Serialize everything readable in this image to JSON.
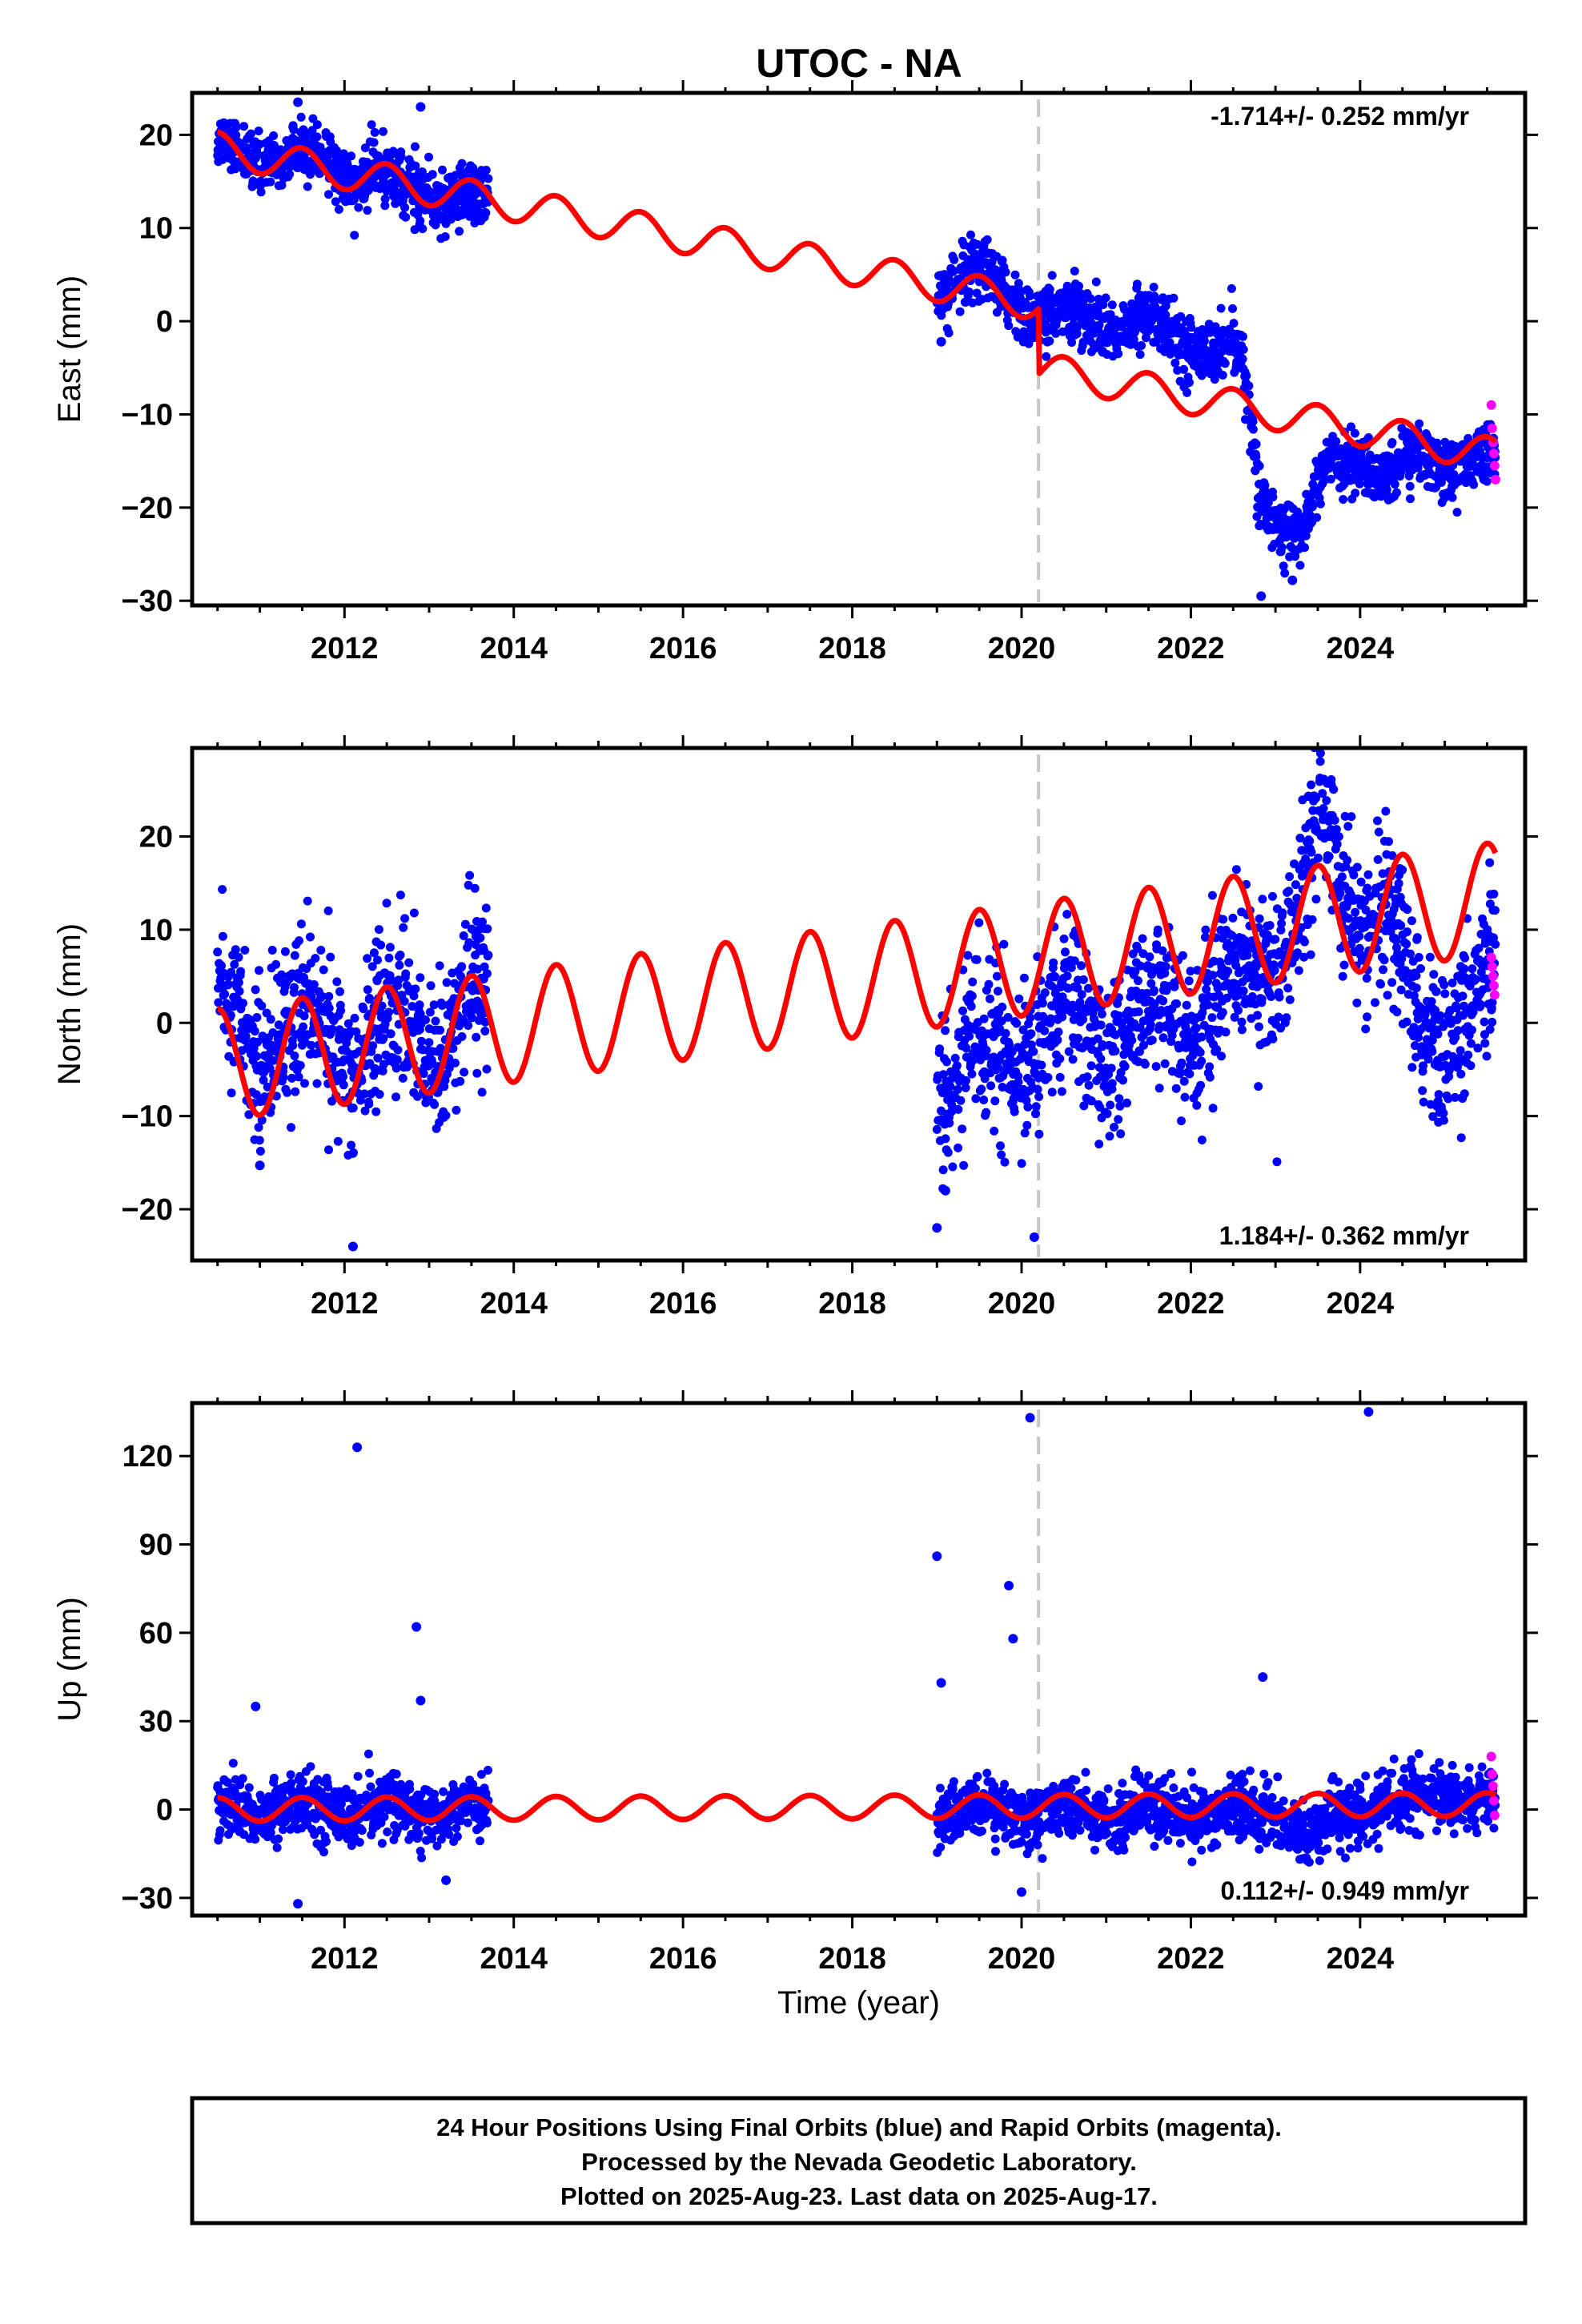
{
  "title": "UTOC - NA",
  "colors": {
    "final": "#0000ff",
    "rapid": "#ff00ff",
    "model": "#ff0000",
    "event": "#c8c8c8"
  },
  "footer": {
    "line1": "24 Hour Positions Using Final Orbits (blue) and Rapid Orbits (magenta).",
    "line2": "Processed by the Nevada Geodetic Laboratory.",
    "line3": "Plotted on 2025-Aug-23. Last data on 2025-Aug-17."
  },
  "chart_data": [
    {
      "type": "scatter",
      "component": "east",
      "ylabel": "East (mm)",
      "xlabel": "",
      "xlim": [
        2010.2,
        2025.95
      ],
      "ylim": [
        -30.5,
        24.5
      ],
      "xticks": [
        2012,
        2014,
        2016,
        2018,
        2020,
        2022,
        2024
      ],
      "yticks": [
        -30,
        -20,
        -10,
        0,
        10,
        20
      ],
      "rate_text": "-1.714+/- 0.252 mm/yr",
      "rate_position": "top-right",
      "event_x": 2020.2,
      "segments": [
        [
          2010.5,
          2013.7
        ],
        [
          2019.0,
          2025.6
        ]
      ],
      "model": {
        "base": 18.5,
        "ref": 2010.5,
        "rate": -1.714,
        "amp": 1.8,
        "step_at": 2020.2,
        "step": -7.0
      },
      "trend_anchors": [
        [
          2010.5,
          18.5
        ],
        [
          2011.5,
          17.5
        ],
        [
          2012.5,
          15.2
        ],
        [
          2013.7,
          12.0
        ],
        [
          2019.0,
          3.5
        ],
        [
          2019.6,
          4.5
        ],
        [
          2020.2,
          0.5
        ],
        [
          2020.5,
          0.5
        ],
        [
          2021.2,
          0.0
        ],
        [
          2021.8,
          -1.5
        ],
        [
          2022.3,
          -3.0
        ],
        [
          2022.6,
          -4.0
        ],
        [
          2022.8,
          -18.5
        ],
        [
          2023.3,
          -23.0
        ],
        [
          2023.6,
          -16.0
        ],
        [
          2024.0,
          -14.0
        ],
        [
          2024.3,
          -17.0
        ],
        [
          2024.7,
          -14.5
        ],
        [
          2025.6,
          -15.0
        ]
      ],
      "noise": 1.6,
      "outliers": [
        [
          2011.45,
          23.5
        ],
        [
          2012.9,
          23.0
        ],
        [
          2022.83,
          -29.5
        ],
        [
          2023.2,
          -27.8
        ],
        [
          2019.05,
          -2.2
        ]
      ],
      "rapid": [
        [
          2025.55,
          -9.0
        ],
        [
          2025.56,
          -11.5
        ],
        [
          2025.57,
          -13.0
        ],
        [
          2025.58,
          -14.2
        ],
        [
          2025.59,
          -15.5
        ],
        [
          2025.6,
          -17.0
        ]
      ]
    },
    {
      "type": "scatter",
      "component": "north",
      "ylabel": "North (mm)",
      "xlabel": "",
      "xlim": [
        2010.2,
        2025.95
      ],
      "ylim": [
        -25.5,
        29.5
      ],
      "xticks": [
        2012,
        2014,
        2016,
        2018,
        2020,
        2022,
        2024
      ],
      "yticks": [
        -20,
        -10,
        0,
        10,
        20
      ],
      "rate_text": "1.184+/- 0.362 mm/yr",
      "rate_position": "bottom-right",
      "event_x": 2020.2,
      "segments": [
        [
          2010.5,
          2013.7
        ],
        [
          2019.0,
          2025.6
        ]
      ],
      "model": {
        "base": -4.5,
        "ref": 2010.5,
        "rate": 1.184,
        "amp": 6.0,
        "step_at": 2020.2,
        "step": 0.0
      },
      "trend_anchors": [
        [
          2010.5,
          0.0
        ],
        [
          2011.5,
          -1.5
        ],
        [
          2012.5,
          -2.0
        ],
        [
          2013.7,
          1.5
        ],
        [
          2019.0,
          -6.0
        ],
        [
          2020.2,
          -2.0
        ],
        [
          2021.0,
          -1.0
        ],
        [
          2022.0,
          1.5
        ],
        [
          2022.7,
          4.0
        ],
        [
          2023.1,
          10.0
        ],
        [
          2023.5,
          19.0
        ],
        [
          2023.9,
          14.0
        ],
        [
          2024.3,
          11.0
        ],
        [
          2024.7,
          -2.0
        ],
        [
          2025.6,
          3.5
        ]
      ],
      "noise": 4.2,
      "outliers": [
        [
          2012.1,
          -24.0
        ],
        [
          2019.0,
          -22.0
        ],
        [
          2020.15,
          -23.0
        ],
        [
          2019.1,
          -18.0
        ],
        [
          2011.0,
          -15.3
        ]
      ],
      "rapid": [
        [
          2025.55,
          7.0
        ],
        [
          2025.56,
          6.0
        ],
        [
          2025.57,
          5.0
        ],
        [
          2025.58,
          4.0
        ],
        [
          2025.59,
          3.0
        ]
      ]
    },
    {
      "type": "scatter",
      "component": "up",
      "ylabel": "Up (mm)",
      "xlabel": "Time (year)",
      "xlim": [
        2010.2,
        2025.95
      ],
      "ylim": [
        -36,
        138
      ],
      "xticks": [
        2012,
        2014,
        2016,
        2018,
        2020,
        2022,
        2024
      ],
      "yticks": [
        -30,
        0,
        30,
        60,
        90,
        120
      ],
      "rate_text": "0.112+/- 0.949 mm/yr",
      "rate_position": "bottom-right",
      "event_x": 2020.2,
      "segments": [
        [
          2010.5,
          2013.7
        ],
        [
          2019.0,
          2025.6
        ]
      ],
      "model": {
        "base": 0.0,
        "ref": 2010.5,
        "rate": 0.112,
        "amp": 4.0,
        "step_at": 2020.2,
        "step": 0.0
      },
      "trend_anchors": [
        [
          2010.5,
          0.0
        ],
        [
          2013.7,
          0.0
        ],
        [
          2019.0,
          0.0
        ],
        [
          2023.0,
          -2.0
        ],
        [
          2023.4,
          -10.0
        ],
        [
          2023.8,
          -2.0
        ],
        [
          2024.9,
          5.0
        ],
        [
          2025.6,
          0.0
        ]
      ],
      "noise": 5.0,
      "outliers": [
        [
          2012.15,
          123.0
        ],
        [
          2012.85,
          62.0
        ],
        [
          2012.9,
          37.0
        ],
        [
          2019.0,
          86.0
        ],
        [
          2019.05,
          43.0
        ],
        [
          2019.85,
          76.0
        ],
        [
          2019.9,
          58.0
        ],
        [
          2020.1,
          133.0
        ],
        [
          2024.1,
          135.0
        ],
        [
          2022.85,
          45.0
        ],
        [
          2011.45,
          -32.0
        ],
        [
          2013.2,
          -24.0
        ],
        [
          2020.0,
          -28.0
        ],
        [
          2010.95,
          35.0
        ]
      ],
      "rapid": [
        [
          2025.55,
          18.0
        ],
        [
          2025.56,
          12.0
        ],
        [
          2025.57,
          8.0
        ],
        [
          2025.58,
          3.0
        ],
        [
          2025.59,
          -2.0
        ]
      ]
    }
  ]
}
